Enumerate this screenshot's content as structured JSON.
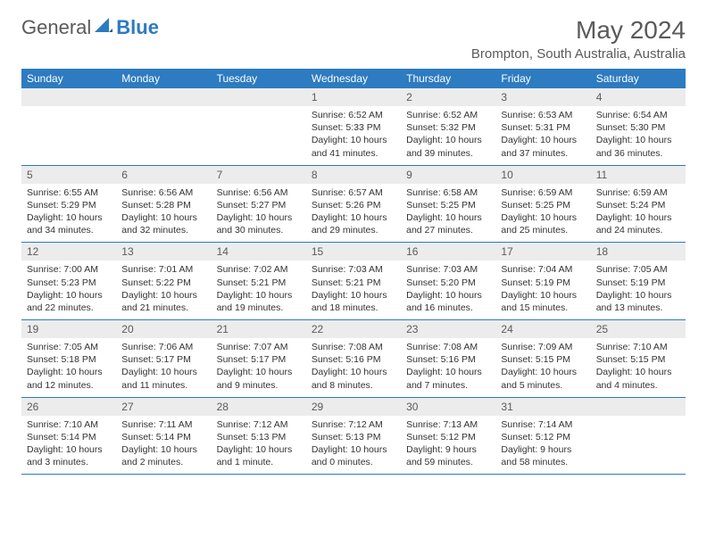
{
  "brand": {
    "part1": "General",
    "part2": "Blue"
  },
  "title": "May 2024",
  "location": "Brompton, South Australia, Australia",
  "day_headers": [
    "Sunday",
    "Monday",
    "Tuesday",
    "Wednesday",
    "Thursday",
    "Friday",
    "Saturday"
  ],
  "colors": {
    "header_bg": "#2d7bc0",
    "header_text": "#ffffff",
    "daynum_bg": "#ececec",
    "text": "#333333",
    "muted": "#5a5a5a",
    "rule": "#2d7bc0"
  },
  "weeks": [
    [
      null,
      null,
      null,
      {
        "n": "1",
        "sunrise": "6:52 AM",
        "sunset": "5:33 PM",
        "daylight": "10 hours and 41 minutes."
      },
      {
        "n": "2",
        "sunrise": "6:52 AM",
        "sunset": "5:32 PM",
        "daylight": "10 hours and 39 minutes."
      },
      {
        "n": "3",
        "sunrise": "6:53 AM",
        "sunset": "5:31 PM",
        "daylight": "10 hours and 37 minutes."
      },
      {
        "n": "4",
        "sunrise": "6:54 AM",
        "sunset": "5:30 PM",
        "daylight": "10 hours and 36 minutes."
      }
    ],
    [
      {
        "n": "5",
        "sunrise": "6:55 AM",
        "sunset": "5:29 PM",
        "daylight": "10 hours and 34 minutes."
      },
      {
        "n": "6",
        "sunrise": "6:56 AM",
        "sunset": "5:28 PM",
        "daylight": "10 hours and 32 minutes."
      },
      {
        "n": "7",
        "sunrise": "6:56 AM",
        "sunset": "5:27 PM",
        "daylight": "10 hours and 30 minutes."
      },
      {
        "n": "8",
        "sunrise": "6:57 AM",
        "sunset": "5:26 PM",
        "daylight": "10 hours and 29 minutes."
      },
      {
        "n": "9",
        "sunrise": "6:58 AM",
        "sunset": "5:25 PM",
        "daylight": "10 hours and 27 minutes."
      },
      {
        "n": "10",
        "sunrise": "6:59 AM",
        "sunset": "5:25 PM",
        "daylight": "10 hours and 25 minutes."
      },
      {
        "n": "11",
        "sunrise": "6:59 AM",
        "sunset": "5:24 PM",
        "daylight": "10 hours and 24 minutes."
      }
    ],
    [
      {
        "n": "12",
        "sunrise": "7:00 AM",
        "sunset": "5:23 PM",
        "daylight": "10 hours and 22 minutes."
      },
      {
        "n": "13",
        "sunrise": "7:01 AM",
        "sunset": "5:22 PM",
        "daylight": "10 hours and 21 minutes."
      },
      {
        "n": "14",
        "sunrise": "7:02 AM",
        "sunset": "5:21 PM",
        "daylight": "10 hours and 19 minutes."
      },
      {
        "n": "15",
        "sunrise": "7:03 AM",
        "sunset": "5:21 PM",
        "daylight": "10 hours and 18 minutes."
      },
      {
        "n": "16",
        "sunrise": "7:03 AM",
        "sunset": "5:20 PM",
        "daylight": "10 hours and 16 minutes."
      },
      {
        "n": "17",
        "sunrise": "7:04 AM",
        "sunset": "5:19 PM",
        "daylight": "10 hours and 15 minutes."
      },
      {
        "n": "18",
        "sunrise": "7:05 AM",
        "sunset": "5:19 PM",
        "daylight": "10 hours and 13 minutes."
      }
    ],
    [
      {
        "n": "19",
        "sunrise": "7:05 AM",
        "sunset": "5:18 PM",
        "daylight": "10 hours and 12 minutes."
      },
      {
        "n": "20",
        "sunrise": "7:06 AM",
        "sunset": "5:17 PM",
        "daylight": "10 hours and 11 minutes."
      },
      {
        "n": "21",
        "sunrise": "7:07 AM",
        "sunset": "5:17 PM",
        "daylight": "10 hours and 9 minutes."
      },
      {
        "n": "22",
        "sunrise": "7:08 AM",
        "sunset": "5:16 PM",
        "daylight": "10 hours and 8 minutes."
      },
      {
        "n": "23",
        "sunrise": "7:08 AM",
        "sunset": "5:16 PM",
        "daylight": "10 hours and 7 minutes."
      },
      {
        "n": "24",
        "sunrise": "7:09 AM",
        "sunset": "5:15 PM",
        "daylight": "10 hours and 5 minutes."
      },
      {
        "n": "25",
        "sunrise": "7:10 AM",
        "sunset": "5:15 PM",
        "daylight": "10 hours and 4 minutes."
      }
    ],
    [
      {
        "n": "26",
        "sunrise": "7:10 AM",
        "sunset": "5:14 PM",
        "daylight": "10 hours and 3 minutes."
      },
      {
        "n": "27",
        "sunrise": "7:11 AM",
        "sunset": "5:14 PM",
        "daylight": "10 hours and 2 minutes."
      },
      {
        "n": "28",
        "sunrise": "7:12 AM",
        "sunset": "5:13 PM",
        "daylight": "10 hours and 1 minute."
      },
      {
        "n": "29",
        "sunrise": "7:12 AM",
        "sunset": "5:13 PM",
        "daylight": "10 hours and 0 minutes."
      },
      {
        "n": "30",
        "sunrise": "7:13 AM",
        "sunset": "5:12 PM",
        "daylight": "9 hours and 59 minutes."
      },
      {
        "n": "31",
        "sunrise": "7:14 AM",
        "sunset": "5:12 PM",
        "daylight": "9 hours and 58 minutes."
      },
      null
    ]
  ],
  "labels": {
    "sunrise": "Sunrise:",
    "sunset": "Sunset:",
    "daylight": "Daylight:"
  }
}
